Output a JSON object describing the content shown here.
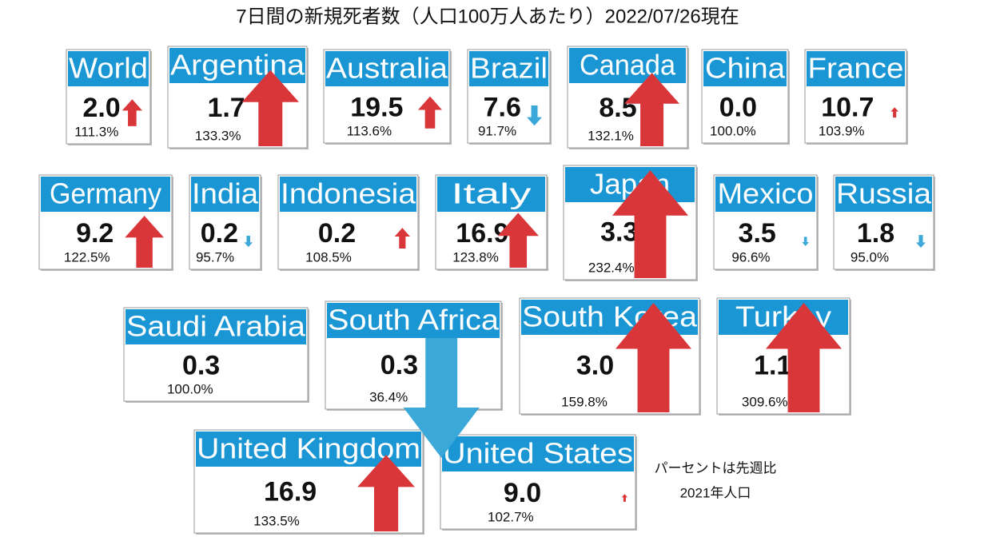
{
  "title": "7日間の新規死者数（人口100万人あたり）2022/07/26現在",
  "cards": [
    {
      "name": "World",
      "value": "2.0",
      "change": 111.3,
      "change_label": "111.3%"
    },
    {
      "name": "Argentina",
      "value": "1.7",
      "change": 133.3,
      "change_label": "133.3%"
    },
    {
      "name": "Australia",
      "value": "19.5",
      "change": 113.6,
      "change_label": "113.6%"
    },
    {
      "name": "Brazil",
      "value": "7.6",
      "change": 91.7,
      "change_label": "91.7%"
    },
    {
      "name": "Canada",
      "value": "8.5",
      "change": 132.1,
      "change_label": "132.1%"
    },
    {
      "name": "China",
      "value": "0.0",
      "change": 100.0,
      "change_label": "100.0%"
    },
    {
      "name": "France",
      "value": "10.7",
      "change": 103.9,
      "change_label": "103.9%"
    },
    {
      "name": "Germany",
      "value": "9.2",
      "change": 122.5,
      "change_label": "122.5%"
    },
    {
      "name": "India",
      "value": "0.2",
      "change": 95.7,
      "change_label": "95.7%"
    },
    {
      "name": "Indonesia",
      "value": "0.2",
      "change": 108.5,
      "change_label": "108.5%"
    },
    {
      "name": "Italy",
      "value": "16.9",
      "change": 123.8,
      "change_label": "123.8%"
    },
    {
      "name": "Japan",
      "value": "3.3",
      "change": 232.4,
      "change_label": "232.4%"
    },
    {
      "name": "Mexico",
      "value": "3.5",
      "change": 96.6,
      "change_label": "96.6%"
    },
    {
      "name": "Russia",
      "value": "1.8",
      "change": 95.0,
      "change_label": "95.0%"
    },
    {
      "name": "Saudi Arabia",
      "value": "0.3",
      "change": 100.0,
      "change_label": "100.0%"
    },
    {
      "name": "South Africa",
      "value": "0.3",
      "change": 36.4,
      "change_label": "36.4%"
    },
    {
      "name": "South Korea",
      "value": "3.0",
      "change": 159.8,
      "change_label": "159.8%"
    },
    {
      "name": "Turkey",
      "value": "1.1",
      "change": 309.6,
      "change_label": "309.6%"
    },
    {
      "name": "United Kingdom",
      "value": "16.9",
      "change": 133.5,
      "change_label": "133.5%"
    },
    {
      "name": "United States",
      "value": "9.0",
      "change": 102.7,
      "change_label": "102.7%"
    }
  ],
  "notes": [
    "パーセントは先週比",
    "2021年人口"
  ]
}
